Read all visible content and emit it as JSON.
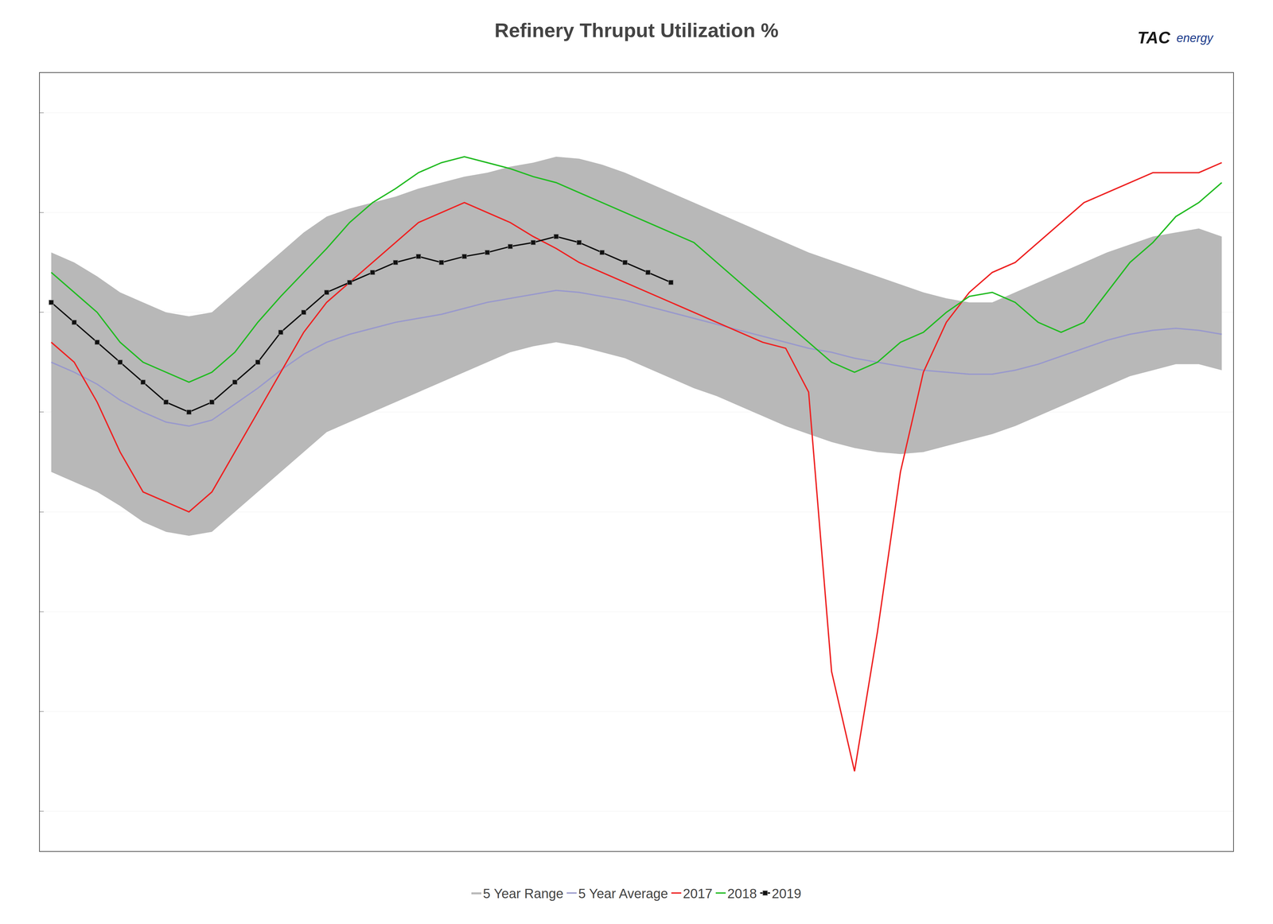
{
  "chart_data": {
    "type": "line",
    "title": "Refinery Thruput Utilization %",
    "annotations": [
      "TAC",
      "energy"
    ],
    "categories": [
      null,
      null,
      null,
      null,
      null,
      null,
      null,
      null,
      null,
      null,
      null,
      null,
      null,
      null,
      null,
      null,
      null,
      null,
      null,
      null,
      null,
      null,
      null,
      null,
      null,
      null,
      null,
      null,
      null,
      null,
      null,
      null,
      null,
      null,
      null,
      null,
      null,
      null,
      null,
      null,
      null,
      null,
      null,
      null,
      null,
      null,
      null,
      null,
      null,
      null,
      null,
      null
    ],
    "ylim": [
      63,
      102
    ],
    "yticks": [
      65,
      70,
      75,
      80,
      85,
      90,
      95,
      100
    ],
    "grid": true,
    "tick_labels": false,
    "legend": "bottom",
    "series": [
      {
        "name": "5 Year Range",
        "type": "range",
        "color": "#b8b8b8",
        "low": [
          82.0,
          81.5,
          81.0,
          80.3,
          79.5,
          79.0,
          78.8,
          79.0,
          80.0,
          81.0,
          82.0,
          83.0,
          84.0,
          84.5,
          85.0,
          85.5,
          86.0,
          86.5,
          87.0,
          87.5,
          88.0,
          88.3,
          88.5,
          88.3,
          88.0,
          87.7,
          87.2,
          86.7,
          86.2,
          85.8,
          85.3,
          84.8,
          84.3,
          83.9,
          83.5,
          83.2,
          83.0,
          82.9,
          83.0,
          83.3,
          83.6,
          83.9,
          84.3,
          84.8,
          85.3,
          85.8,
          86.3,
          86.8,
          87.1,
          87.4,
          87.4,
          87.1
        ],
        "high": [
          93.0,
          92.5,
          91.8,
          91.0,
          90.5,
          90.0,
          89.8,
          90.0,
          91.0,
          92.0,
          93.0,
          94.0,
          94.8,
          95.2,
          95.5,
          95.8,
          96.2,
          96.5,
          96.8,
          97.0,
          97.3,
          97.5,
          97.8,
          97.7,
          97.4,
          97.0,
          96.5,
          96.0,
          95.5,
          95.0,
          94.5,
          94.0,
          93.5,
          93.0,
          92.6,
          92.2,
          91.8,
          91.4,
          91.0,
          90.7,
          90.5,
          90.5,
          91.0,
          91.5,
          92.0,
          92.5,
          93.0,
          93.4,
          93.8,
          94.0,
          94.2,
          93.8
        ]
      },
      {
        "name": "5 Year Average",
        "type": "line",
        "color": "#9999cc",
        "values": [
          87.5,
          87.0,
          86.4,
          85.6,
          85.0,
          84.5,
          84.3,
          84.6,
          85.4,
          86.2,
          87.1,
          87.9,
          88.5,
          88.9,
          89.2,
          89.5,
          89.7,
          89.9,
          90.2,
          90.5,
          90.7,
          90.9,
          91.1,
          91.0,
          90.8,
          90.6,
          90.3,
          90.0,
          89.7,
          89.4,
          89.1,
          88.8,
          88.5,
          88.2,
          88.0,
          87.7,
          87.5,
          87.3,
          87.1,
          87.0,
          86.9,
          86.9,
          87.1,
          87.4,
          87.8,
          88.2,
          88.6,
          88.9,
          89.1,
          89.2,
          89.1,
          88.9
        ]
      },
      {
        "name": "2017",
        "type": "line",
        "color": "#ee2222",
        "values": [
          88.5,
          87.5,
          85.5,
          83.0,
          81.0,
          80.5,
          80.0,
          81.0,
          83.0,
          85.0,
          87.0,
          89.0,
          90.5,
          91.5,
          92.5,
          93.5,
          94.5,
          95.0,
          95.5,
          95.0,
          94.5,
          93.8,
          93.2,
          92.5,
          92.0,
          91.5,
          91.0,
          90.5,
          90.0,
          89.5,
          89.0,
          88.5,
          88.2,
          86.0,
          72.0,
          67.0,
          74.0,
          82.0,
          87.0,
          89.5,
          91.0,
          92.0,
          92.5,
          93.5,
          94.5,
          95.5,
          96.0,
          96.5,
          97.0,
          97.0,
          97.0,
          97.5
        ]
      },
      {
        "name": "2018",
        "type": "line",
        "color": "#22bb22",
        "values": [
          92.0,
          91.0,
          90.0,
          88.5,
          87.5,
          87.0,
          86.5,
          87.0,
          88.0,
          89.5,
          90.8,
          92.0,
          93.2,
          94.5,
          95.5,
          96.2,
          97.0,
          97.5,
          97.8,
          97.5,
          97.2,
          96.8,
          96.5,
          96.0,
          95.5,
          95.0,
          94.5,
          94.0,
          93.5,
          92.5,
          91.5,
          90.5,
          89.5,
          88.5,
          87.5,
          87.0,
          87.5,
          88.5,
          89.0,
          90.0,
          90.8,
          91.0,
          90.5,
          89.5,
          89.0,
          89.5,
          91.0,
          92.5,
          93.5,
          94.8,
          95.5,
          96.5
        ]
      },
      {
        "name": "2019",
        "type": "line",
        "color": "#111111",
        "marker": "square",
        "values": [
          90.5,
          89.5,
          88.5,
          87.5,
          86.5,
          85.5,
          85.0,
          85.5,
          86.5,
          87.5,
          89.0,
          90.0,
          91.0,
          91.5,
          92.0,
          92.5,
          92.8,
          92.5,
          92.8,
          93.0,
          93.3,
          93.5,
          93.8,
          93.5,
          93.0,
          92.5,
          92.0,
          91.5,
          null,
          null,
          null,
          null,
          null,
          null,
          null,
          null,
          null,
          null,
          null,
          null,
          null,
          null,
          null,
          null,
          null,
          null,
          null,
          null,
          null,
          null,
          null,
          null
        ]
      }
    ]
  }
}
